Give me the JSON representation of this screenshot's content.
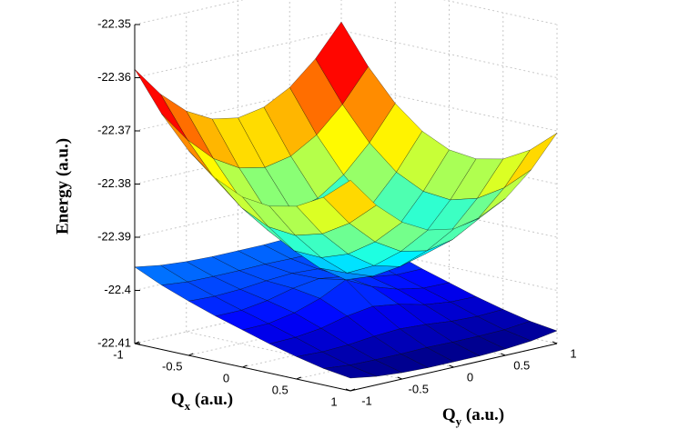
{
  "chart_data": {
    "type": "surface",
    "xlabel": "Qx (a.u.)",
    "ylabel": "Qy (a.u.)",
    "zlabel": "Energy (a.u.)",
    "x": [
      -1,
      -0.75,
      -0.5,
      -0.25,
      0,
      0.25,
      0.5,
      0.75,
      1
    ],
    "y": [
      -1,
      -0.75,
      -0.5,
      -0.25,
      0,
      0.25,
      0.5,
      0.75,
      1
    ],
    "series": [
      {
        "values": [
          [
            -22.3584,
            -22.3642,
            -22.3685,
            -22.3711,
            -22.372,
            -22.3711,
            -22.3685,
            -22.3642,
            -22.3584
          ],
          [
            -22.3657,
            -22.3717,
            -22.3763,
            -22.3792,
            -22.3802,
            -22.3792,
            -22.3763,
            -22.3717,
            -22.3657
          ],
          [
            -22.3715,
            -22.3778,
            -22.3827,
            -22.386,
            -22.3873,
            -22.386,
            -22.3827,
            -22.3778,
            -22.3715
          ],
          [
            -22.3756,
            -22.3822,
            -22.3875,
            -22.3915,
            -22.3932,
            -22.3915,
            -22.3875,
            -22.3822,
            -22.3756
          ],
          [
            -22.378,
            -22.3847,
            -22.3903,
            -22.3947,
            -22.398,
            -22.3947,
            -22.3903,
            -22.3847,
            -22.378
          ],
          [
            -22.3786,
            -22.3852,
            -22.3905,
            -22.3945,
            -22.3962,
            -22.3945,
            -22.3905,
            -22.3852,
            -22.3786
          ],
          [
            -22.3775,
            -22.3838,
            -22.3887,
            -22.392,
            -22.3933,
            -22.392,
            -22.3887,
            -22.3838,
            -22.3775
          ],
          [
            -22.3747,
            -22.3807,
            -22.3853,
            -22.3882,
            -22.3892,
            -22.3882,
            -22.3853,
            -22.3807,
            -22.3747
          ],
          [
            -22.3704,
            -22.3762,
            -22.3805,
            -22.3831,
            -22.384,
            -22.3831,
            -22.3805,
            -22.3762,
            -22.3704
          ]
        ]
      },
      {
        "values": [
          [
            -22.3956,
            -22.3964,
            -22.3968,
            -22.397,
            -22.397,
            -22.397,
            -22.3968,
            -22.3964,
            -22.3956
          ],
          [
            -22.3979,
            -22.3984,
            -22.3985,
            -22.3985,
            -22.3984,
            -22.3985,
            -22.3985,
            -22.3984,
            -22.3979
          ],
          [
            -22.3998,
            -22.4,
            -22.3998,
            -22.3993,
            -22.399,
            -22.3993,
            -22.3998,
            -22.4,
            -22.3998
          ],
          [
            -22.4015,
            -22.4015,
            -22.4008,
            -22.3996,
            -22.3989,
            -22.3996,
            -22.4008,
            -22.4015,
            -22.4015
          ],
          [
            -22.403,
            -22.4029,
            -22.402,
            -22.4004,
            -22.398,
            -22.4004,
            -22.402,
            -22.4029,
            -22.403
          ],
          [
            -22.4045,
            -22.4044,
            -22.4038,
            -22.4026,
            -22.4019,
            -22.4026,
            -22.4038,
            -22.4044,
            -22.4045
          ],
          [
            -22.4058,
            -22.406,
            -22.4058,
            -22.4053,
            -22.405,
            -22.4053,
            -22.4058,
            -22.406,
            -22.4058
          ],
          [
            -22.4069,
            -22.4074,
            -22.4075,
            -22.4075,
            -22.4074,
            -22.4075,
            -22.4075,
            -22.4074,
            -22.4069
          ],
          [
            -22.4076,
            -22.4084,
            -22.4088,
            -22.409,
            -22.409,
            -22.409,
            -22.4088,
            -22.4084,
            -22.4076
          ]
        ]
      }
    ],
    "xlim": [
      -1,
      1
    ],
    "ylim": [
      -1,
      1
    ],
    "zlim": [
      -22.41,
      -22.35
    ],
    "xticks": [
      -1,
      -0.5,
      0,
      0.5,
      1
    ],
    "yticks": [
      -1,
      -0.5,
      0,
      0.5,
      1
    ],
    "zticks": [
      -22.41,
      -22.4,
      -22.39,
      -22.38,
      -22.37,
      -22.36,
      -22.35
    ],
    "grid": true,
    "colormap": "jet"
  }
}
